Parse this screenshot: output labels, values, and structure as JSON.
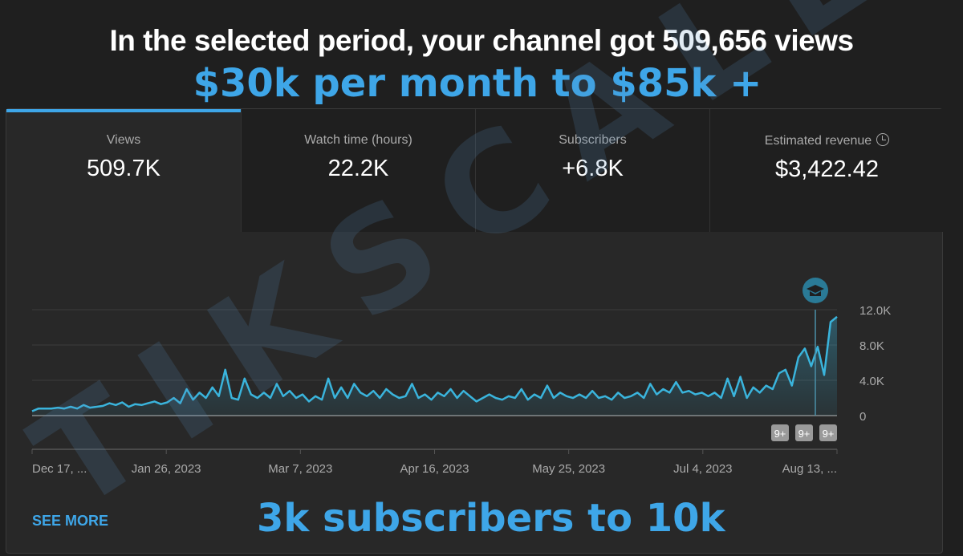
{
  "overlay": {
    "headline": "In the selected period, your channel got 509,656 views",
    "sub": "$30k per month to $85k +",
    "bottom": "3k subscribers to 10k",
    "watermark": "TIKSCALE"
  },
  "tabs": [
    {
      "label": "Views",
      "value": "509.7K"
    },
    {
      "label": "Watch time (hours)",
      "value": "22.2K"
    },
    {
      "label": "Subscribers",
      "value": "+6.8K"
    },
    {
      "label": "Estimated revenue",
      "value": "$3,422.42",
      "icon": "clock-icon"
    }
  ],
  "see_more": "SEE MORE",
  "badges": [
    "9+",
    "9+",
    "9+"
  ],
  "colors": {
    "accent": "#3ea6e8",
    "line": "#3ab4dc"
  },
  "chart_data": {
    "type": "line",
    "title": "Views",
    "xlabel": "",
    "ylabel": "",
    "ylim": [
      0,
      12000
    ],
    "yticks": [
      "0",
      "4.0K",
      "8.0K",
      "12.0K"
    ],
    "ytick_values": [
      0,
      4000,
      8000,
      12000
    ],
    "xticks": [
      "Dec 17, ...",
      "Jan 26, 2023",
      "Mar 7, 2023",
      "Apr 16, 2023",
      "May 25, 2023",
      "Jul 4, 2023",
      "Aug 13, ..."
    ],
    "grid": true,
    "values_k": [
      0.5,
      0.8,
      0.8,
      0.8,
      0.9,
      0.8,
      1.0,
      0.8,
      1.2,
      0.9,
      1.0,
      1.1,
      1.4,
      1.2,
      1.5,
      1.0,
      1.3,
      1.2,
      1.4,
      1.6,
      1.3,
      1.5,
      2.0,
      1.4,
      3.0,
      1.8,
      2.6,
      2.0,
      3.2,
      2.2,
      5.2,
      2.0,
      1.8,
      4.2,
      2.4,
      2.0,
      2.6,
      2.0,
      3.6,
      2.2,
      2.8,
      2.0,
      2.4,
      1.6,
      2.2,
      1.8,
      4.2,
      2.0,
      3.2,
      2.0,
      3.6,
      2.6,
      2.2,
      2.8,
      2.0,
      3.0,
      2.4,
      2.0,
      2.2,
      3.6,
      2.0,
      2.4,
      1.8,
      2.6,
      2.2,
      3.0,
      2.0,
      2.8,
      2.2,
      1.6,
      2.0,
      2.4,
      2.0,
      1.8,
      2.2,
      2.0,
      3.0,
      1.8,
      2.4,
      2.0,
      3.4,
      2.0,
      2.6,
      2.2,
      2.0,
      2.4,
      2.0,
      2.8,
      2.0,
      2.2,
      1.8,
      2.6,
      2.0,
      2.2,
      2.6,
      2.0,
      3.6,
      2.4,
      3.0,
      2.6,
      3.8,
      2.6,
      2.8,
      2.4,
      2.6,
      2.2,
      2.6,
      2.0,
      4.2,
      2.2,
      4.4,
      2.0,
      3.2,
      2.6,
      3.4,
      3.0,
      4.8,
      5.2,
      3.4,
      6.6,
      7.6,
      5.6,
      7.8,
      4.6,
      10.6,
      11.2
    ]
  }
}
